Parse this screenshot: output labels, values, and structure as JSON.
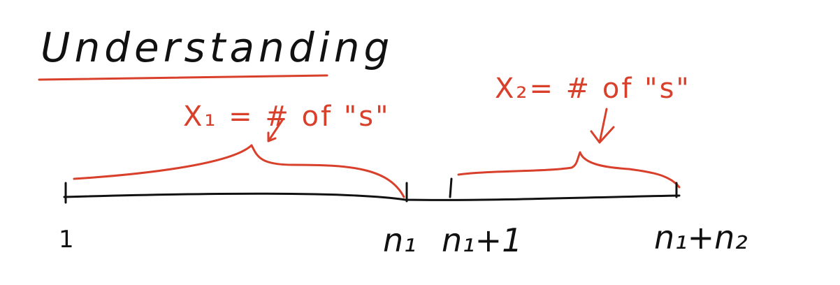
{
  "title": "Understanding",
  "colors": {
    "ink": "#111111",
    "annotation": "#d9402b",
    "background": "#ffffff"
  },
  "annotations": {
    "first_group": "X₁ = # of \"s\"",
    "second_group": "X₂= # of \"s\""
  },
  "number_line": {
    "labels": {
      "start": "1",
      "n1": "n₁",
      "n1_plus_1": "n₁+1",
      "n1_plus_n2": "n₁+n₂"
    }
  }
}
